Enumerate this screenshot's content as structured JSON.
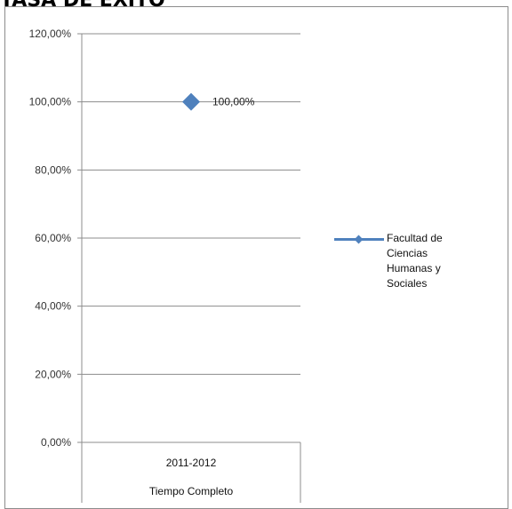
{
  "chart_data": {
    "type": "line",
    "title": "TASA DE EXITO",
    "categories": [
      "2011-2012"
    ],
    "category_group": "Tiempo Completo",
    "series": [
      {
        "name": "Facultad de Ciencias Humanas y Sociales",
        "values": [
          1.0
        ],
        "color": "#4f81bd"
      }
    ],
    "data_labels": [
      "100,00%"
    ],
    "y_ticks": [
      "0,00%",
      "20,00%",
      "40,00%",
      "60,00%",
      "80,00%",
      "100,00%",
      "120,00%"
    ],
    "ylim": [
      0,
      1.2
    ],
    "y_format": "percent",
    "grid": true,
    "legend_position": "right",
    "marker": "diamond"
  }
}
